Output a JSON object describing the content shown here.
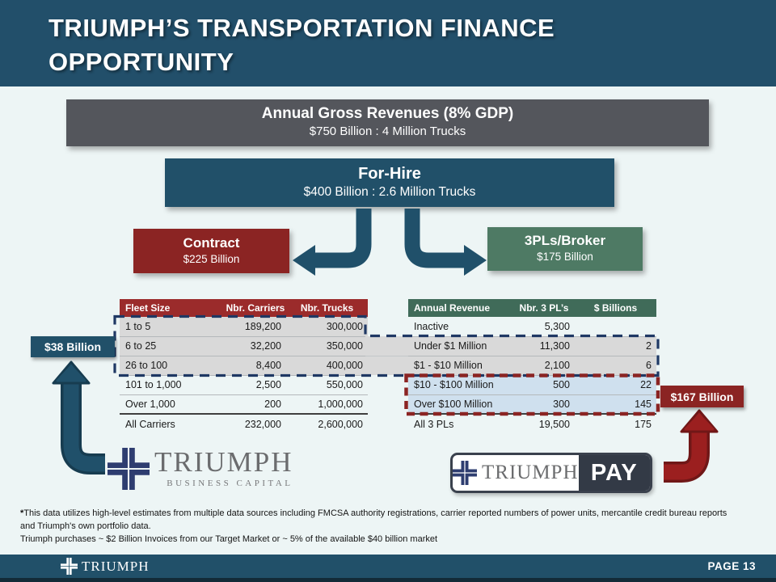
{
  "slide": {
    "title_line1": "TRIUMPH’S TRANSPORTATION FINANCE",
    "title_line2": "OPPORTUNITY",
    "page_label": "PAGE 13"
  },
  "hierarchy": {
    "gross": {
      "title": "Annual Gross Revenues  (8% GDP)",
      "subtitle": "$750 Billion : 4 Million Trucks"
    },
    "for_hire": {
      "title": "For-Hire",
      "subtitle": "$400 Billion : 2.6 Million Trucks"
    },
    "contract": {
      "title": "Contract",
      "subtitle": "$225 Billion"
    },
    "broker": {
      "title": "3PLs/Broker",
      "subtitle": "$175 Billion"
    }
  },
  "callouts": {
    "carrier_market": "$38 Billion",
    "broker_market": "$167 Billion"
  },
  "carrier_table": {
    "headers": [
      "Fleet Size",
      "Nbr. Carriers",
      "Nbr. Trucks"
    ],
    "rows": [
      {
        "cells": [
          "1 to 5",
          "189,200",
          "300,000"
        ],
        "highlight": "gray"
      },
      {
        "cells": [
          "6 to 25",
          "32,200",
          "350,000"
        ],
        "highlight": "gray"
      },
      {
        "cells": [
          "26 to 100",
          "8,400",
          "400,000"
        ],
        "highlight": "gray"
      },
      {
        "cells": [
          "101 to 1,000",
          "2,500",
          "550,000"
        ],
        "highlight": "none"
      },
      {
        "cells": [
          "Over 1,000",
          "200",
          "1,000,000"
        ],
        "highlight": "none"
      },
      {
        "cells": [
          "All Carriers",
          "232,000",
          "2,600,000"
        ],
        "highlight": "none",
        "total": true
      }
    ]
  },
  "broker_table": {
    "headers": [
      "Annual Revenue",
      "Nbr. 3 PL’s",
      "$ Billions"
    ],
    "rows": [
      {
        "cells": [
          "Inactive",
          "5,300",
          ""
        ],
        "highlight": "none"
      },
      {
        "cells": [
          "Under $1 Million",
          "11,300",
          "2"
        ],
        "highlight": "gray"
      },
      {
        "cells": [
          "$1 - $10 Million",
          "2,100",
          "6"
        ],
        "highlight": "gray"
      },
      {
        "cells": [
          "$10 - $100 Million",
          "500",
          "22"
        ],
        "highlight": "blue"
      },
      {
        "cells": [
          "Over $100 Million",
          "300",
          "145"
        ],
        "highlight": "blue"
      },
      {
        "cells": [
          "All 3 PLs",
          "19,500",
          "175"
        ],
        "highlight": "none",
        "total": true
      }
    ]
  },
  "logos": {
    "business_capital": {
      "name": "TRIUMPH",
      "tagline": "BUSINESS CAPITAL"
    },
    "pay": {
      "name": "TRIUMPH",
      "product": "PAY"
    },
    "footer_brand": "TRIUMPH"
  },
  "footnote": {
    "mark": "*",
    "line1": "This data utilizes high-level estimates from multiple data sources including  FMCSA authority registrations,  carrier reported numbers of power units, mercantile credit bureau reports  and Triumph's own portfolio data.",
    "line2": "Triumph purchases ~ $2 Billion Invoices from our Target Market or ~ 5% of the available $40 billion  market"
  },
  "colors": {
    "band_navy": "#224f6a",
    "box_gray": "#54565c",
    "box_red": "#8b2423",
    "box_green": "#4e7a64",
    "table_header_red": "#9b2b2b",
    "table_header_green": "#406b59",
    "row_highlight_gray": "#d9d9d9",
    "row_highlight_blue": "#cfe0ee",
    "dash_navy": "#1f3864",
    "dash_red": "#8b2423",
    "arrow_blue": "#20506a",
    "arrow_red": "#9b1f1f",
    "background": "#edf5f5"
  }
}
